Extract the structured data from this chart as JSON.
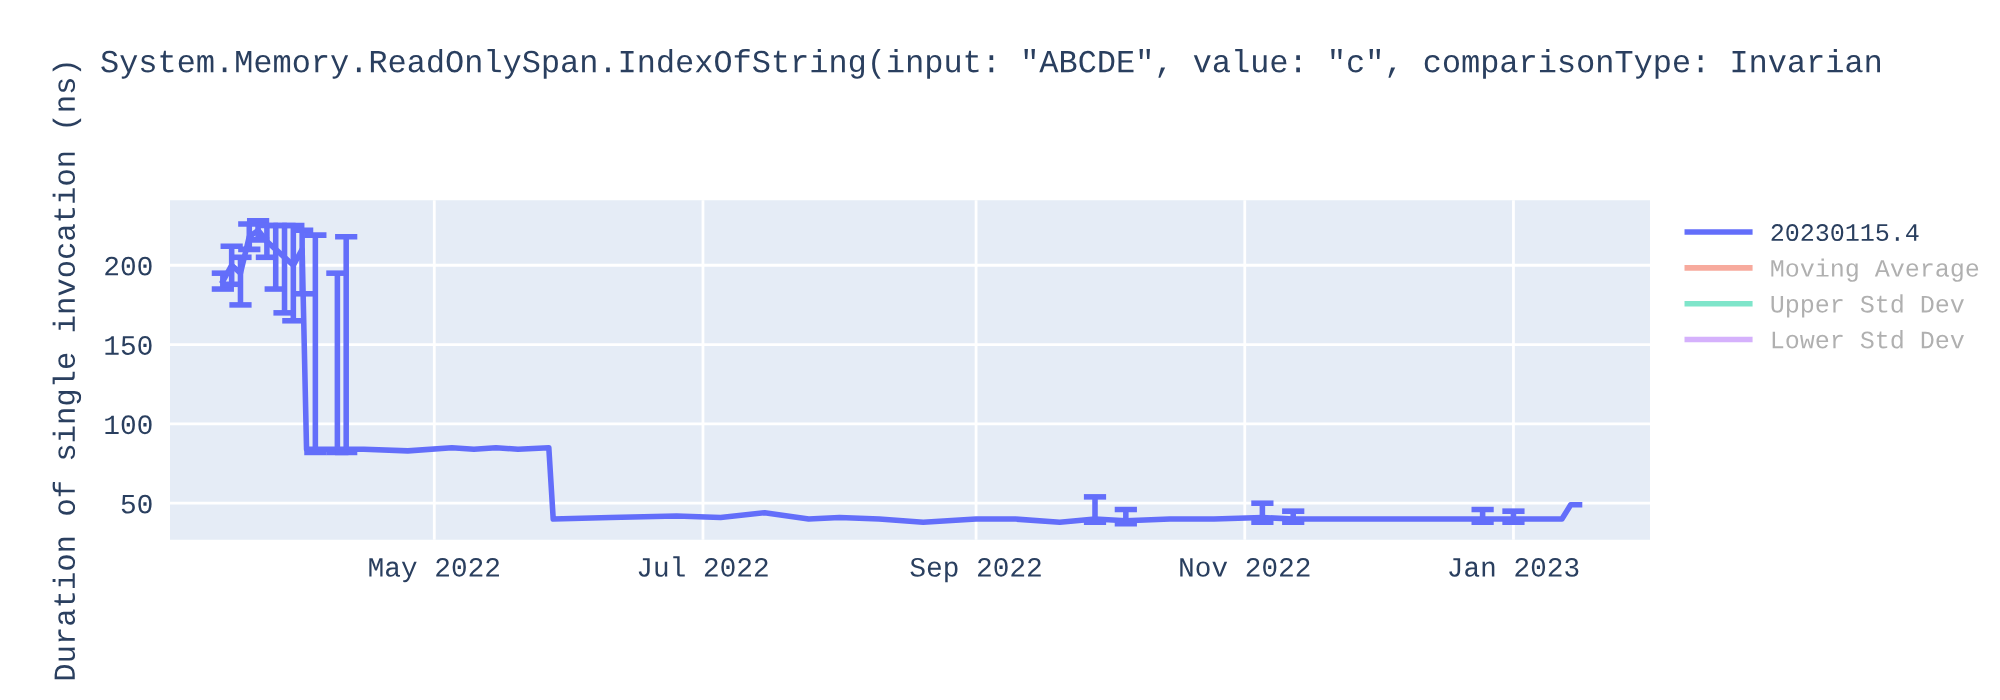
{
  "chart_data": {
    "type": "line",
    "title": "System.Memory.ReadOnlySpan.IndexOfString(input: \"ABCDE\", value: \"c\", comparisonType: Invarian",
    "ylabel": "Duration of single invocation (ns)",
    "x": [
      "2022-03-14",
      "2022-03-16",
      "2022-03-18",
      "2022-03-20",
      "2022-03-22",
      "2022-03-24",
      "2022-03-26",
      "2022-03-28",
      "2022-03-30",
      "2022-04-01",
      "2022-04-02",
      "2022-04-04",
      "2022-04-09",
      "2022-04-11",
      "2022-04-15",
      "2022-04-25",
      "2022-05-05",
      "2022-05-10",
      "2022-05-15",
      "2022-05-20",
      "2022-05-27",
      "2022-05-28",
      "2022-06-10",
      "2022-06-25",
      "2022-07-05",
      "2022-07-15",
      "2022-07-25",
      "2022-08-01",
      "2022-08-10",
      "2022-08-20",
      "2022-09-01",
      "2022-09-10",
      "2022-09-20",
      "2022-09-28",
      "2022-10-05",
      "2022-10-15",
      "2022-10-25",
      "2022-11-05",
      "2022-11-12",
      "2022-11-25",
      "2022-12-05",
      "2022-12-15",
      "2022-12-25",
      "2023-01-01",
      "2023-01-08",
      "2023-01-12",
      "2023-01-14",
      "2023-01-16"
    ],
    "series": [
      {
        "name": "20230115.4",
        "color": "#636efa",
        "values": [
          190,
          200,
          195,
          218,
          222,
          215,
          210,
          205,
          200,
          210,
          84,
          84,
          84,
          84,
          84,
          83,
          85,
          84,
          85,
          84,
          85,
          40,
          41,
          42,
          41,
          44,
          40,
          41,
          40,
          38,
          40,
          40,
          38,
          40,
          39,
          40,
          40,
          41,
          40,
          40,
          40,
          40,
          40,
          40,
          40,
          40,
          49,
          49
        ],
        "errors": [
          [
            185,
            195
          ],
          [
            188,
            212
          ],
          [
            175,
            205
          ],
          [
            210,
            226
          ],
          [
            216,
            228
          ],
          [
            205,
            225
          ],
          [
            185,
            225
          ],
          [
            170,
            225
          ],
          [
            165,
            225
          ],
          [
            182,
            222
          ],
          null,
          [
            82,
            219
          ],
          [
            82,
            195
          ],
          [
            82,
            218
          ],
          null,
          null,
          null,
          null,
          null,
          null,
          null,
          null,
          null,
          null,
          null,
          null,
          null,
          null,
          null,
          null,
          null,
          null,
          null,
          [
            38,
            54
          ],
          [
            37,
            46
          ],
          null,
          null,
          [
            38,
            50
          ],
          [
            38,
            45
          ],
          null,
          null,
          null,
          [
            38,
            46
          ],
          [
            38,
            45
          ],
          null,
          null,
          null,
          null
        ]
      },
      {
        "name": "Moving Average",
        "color": "#ef553b",
        "values": [
          null,
          null,
          null,
          null,
          null,
          null,
          null,
          null,
          null,
          null,
          null,
          null,
          null,
          null,
          null,
          null,
          null,
          null,
          null,
          null,
          null,
          null,
          null,
          null,
          null,
          null,
          null,
          null,
          null,
          null,
          null,
          null,
          null,
          null,
          null,
          null,
          null,
          null,
          null,
          null,
          null,
          null,
          null,
          null,
          null,
          null,
          null,
          null
        ]
      },
      {
        "name": "Upper Std Dev",
        "color": "#00cc96",
        "values": [
          null,
          null,
          null,
          null,
          null,
          null,
          null,
          null,
          null,
          null,
          null,
          null,
          null,
          null,
          null,
          null,
          null,
          null,
          null,
          null,
          null,
          null,
          null,
          null,
          null,
          null,
          null,
          null,
          null,
          null,
          null,
          null,
          null,
          null,
          null,
          null,
          null,
          null,
          null,
          null,
          null,
          null,
          null,
          null,
          null,
          null,
          null,
          null
        ]
      },
      {
        "name": "Lower Std Dev",
        "color": "#ab63fa",
        "values": [
          null,
          null,
          null,
          null,
          null,
          null,
          null,
          null,
          null,
          null,
          null,
          null,
          null,
          null,
          null,
          null,
          null,
          null,
          null,
          null,
          null,
          null,
          null,
          null,
          null,
          null,
          null,
          null,
          null,
          null,
          null,
          null,
          null,
          null,
          null,
          null,
          null,
          null,
          null,
          null,
          null,
          null,
          null,
          null,
          null,
          null,
          null,
          null
        ]
      }
    ],
    "xlim": [
      "2022-03-02",
      "2023-02-01"
    ],
    "xticks": [
      {
        "value": "2022-05-01",
        "label": "May 2022"
      },
      {
        "value": "2022-07-01",
        "label": "Jul 2022"
      },
      {
        "value": "2022-09-01",
        "label": "Sep 2022"
      },
      {
        "value": "2022-11-01",
        "label": "Nov 2022"
      },
      {
        "value": "2023-01-01",
        "label": "Jan 2023"
      }
    ],
    "ylim": [
      27,
      241
    ],
    "yticks": [
      50,
      100,
      150,
      200
    ],
    "grid": true,
    "legend": "top right"
  }
}
